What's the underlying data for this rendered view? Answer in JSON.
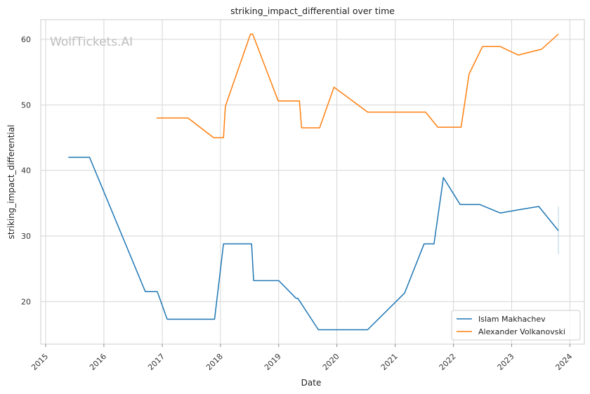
{
  "chart_data": {
    "type": "line",
    "title": "striking_impact_differential over time",
    "xlabel": "Date",
    "ylabel": "striking_impact_differential",
    "watermark": "WolfTickets.AI",
    "x_ticks": [
      "2015",
      "2016",
      "2017",
      "2018",
      "2019",
      "2020",
      "2021",
      "2022",
      "2023",
      "2024"
    ],
    "y_ticks": [
      20,
      30,
      40,
      50,
      60
    ],
    "xlim": [
      "2014-12-01",
      "2024-04-01"
    ],
    "ylim": [
      13.5,
      63
    ],
    "grid": true,
    "legend_position": "lower-right",
    "series": [
      {
        "name": "Islam Makhachev",
        "color": "#1f77b4",
        "points": [
          [
            "2015-05-23",
            42.0
          ],
          [
            "2015-10-03",
            42.0
          ],
          [
            "2016-09-17",
            21.5
          ],
          [
            "2016-12-01",
            21.5
          ],
          [
            "2017-02-01",
            17.3
          ],
          [
            "2017-11-25",
            17.3
          ],
          [
            "2018-01-20",
            28.8
          ],
          [
            "2018-07-15",
            28.8
          ],
          [
            "2018-07-28",
            23.2
          ],
          [
            "2019-01-01",
            23.2
          ],
          [
            "2019-04-20",
            20.5
          ],
          [
            "2019-05-01",
            20.5
          ],
          [
            "2019-09-07",
            15.7
          ],
          [
            "2020-07-12",
            15.7
          ],
          [
            "2021-03-01",
            21.3
          ],
          [
            "2021-07-01",
            28.8
          ],
          [
            "2021-09-01",
            28.8
          ],
          [
            "2021-10-30",
            38.9
          ],
          [
            "2022-02-12",
            34.8
          ],
          [
            "2022-06-15",
            34.8
          ],
          [
            "2022-10-22",
            33.5
          ],
          [
            "2023-02-12",
            34.0
          ],
          [
            "2023-06-20",
            34.5
          ],
          [
            "2023-10-21",
            30.8
          ]
        ]
      },
      {
        "name": "Alexander Volkanovski",
        "color": "#ff7f0e",
        "points": [
          [
            "2016-11-27",
            48.0
          ],
          [
            "2017-06-11",
            48.0
          ],
          [
            "2017-11-19",
            45.0
          ],
          [
            "2018-01-20",
            45.0
          ],
          [
            "2018-02-01",
            49.8
          ],
          [
            "2018-07-08",
            60.8
          ],
          [
            "2018-07-22",
            60.8
          ],
          [
            "2018-12-29",
            50.6
          ],
          [
            "2019-05-11",
            50.6
          ],
          [
            "2019-05-25",
            46.5
          ],
          [
            "2019-09-15",
            46.5
          ],
          [
            "2019-12-14",
            52.7
          ],
          [
            "2020-07-12",
            48.9
          ],
          [
            "2021-07-10",
            48.9
          ],
          [
            "2021-09-25",
            46.6
          ],
          [
            "2022-02-18",
            46.6
          ],
          [
            "2022-04-09",
            54.7
          ],
          [
            "2022-07-02",
            58.9
          ],
          [
            "2022-10-22",
            58.9
          ],
          [
            "2023-02-12",
            57.6
          ],
          [
            "2023-07-08",
            58.5
          ],
          [
            "2023-10-21",
            60.8
          ]
        ]
      }
    ]
  }
}
